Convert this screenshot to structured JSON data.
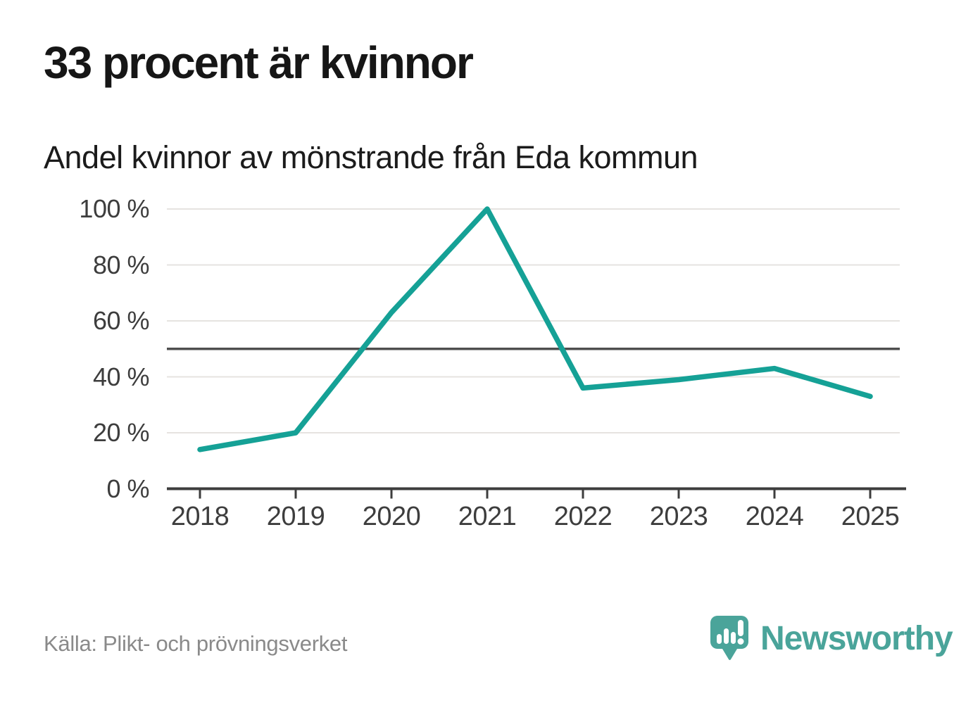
{
  "header": {
    "title": "33 procent är kvinnor",
    "subtitle": "Andel kvinnor av mönstrande från Eda kommun"
  },
  "chart_data": {
    "type": "line",
    "x": [
      "2018",
      "2019",
      "2020",
      "2021",
      "2022",
      "2023",
      "2024",
      "2025"
    ],
    "series": [
      {
        "name": "Andel kvinnor av mönstrande",
        "values": [
          14,
          20,
          63,
          100,
          36,
          39,
          43,
          33
        ]
      }
    ],
    "unit": "%",
    "ylim": [
      0,
      100
    ],
    "yticks": [
      0,
      20,
      40,
      60,
      80,
      100
    ],
    "ytick_format": "{v} %",
    "reference_line": 50,
    "grid": true,
    "legend": "none",
    "title": "33 procent är kvinnor",
    "subtitle": "Andel kvinnor av mönstrande från Eda kommun"
  },
  "footer": {
    "source": "Källa: Plikt- och prövningsverket",
    "brand": "Newsworthy"
  },
  "colors": {
    "line": "#15a196",
    "reference_line": "#4f4f4f",
    "grid": "#e6e3e0",
    "axis": "#3d3d3d",
    "title_text": "#161616",
    "tick_text": "#3d3d3d",
    "source_text": "#8a8a8a",
    "brand_teal": "#4aa49a"
  }
}
